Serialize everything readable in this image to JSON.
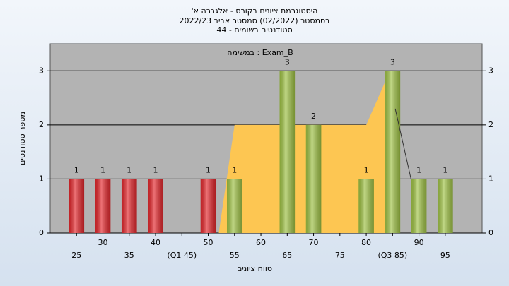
{
  "chart_data": {
    "type": "bar",
    "title": "'היסטוגרמת ציונים בקורס - אלגברה א",
    "subtitle": "בסמסטר  (02/2022)  סמסטר אביב 2022/23",
    "subtitle2": "סטודנטים רשומים - 44",
    "annotation": "במשימה : Exam_B",
    "x_label": "טווח ציונים",
    "y_label": "מספר סטודנטים",
    "x": [
      25,
      30,
      35,
      40,
      45,
      50,
      55,
      60,
      65,
      70,
      75,
      80,
      85,
      90,
      95
    ],
    "values": [
      1,
      1,
      1,
      1,
      0,
      1,
      1,
      0,
      3,
      2,
      0,
      1,
      3,
      1,
      1
    ],
    "colors": [
      "#e3262b",
      "#e3262b",
      "#e3262b",
      "#e3262b",
      "#e3262b",
      "#e3262b",
      "#9fc245",
      "#9fc245",
      "#9fc245",
      "#9fc245",
      "#9fc245",
      "#9fc245",
      "#9fc245",
      "#9fc245",
      "#9fc245"
    ],
    "xticks": [
      25,
      30,
      35,
      40,
      {
        "value": 45,
        "label": "(Q1 45)"
      },
      50,
      55,
      60,
      65,
      70,
      75,
      80,
      {
        "value": 85,
        "label": "(Q3 85)"
      },
      90,
      95
    ],
    "xlim": [
      20,
      102
    ],
    "ylim": [
      0,
      3.5
    ],
    "yticks": [
      0,
      1,
      2,
      3
    ],
    "grid": true,
    "area": {
      "color": "#fdc652",
      "x": [
        52,
        55,
        80,
        84.5,
        84.5
      ],
      "values": [
        0,
        2,
        2,
        3,
        0
      ]
    },
    "line": {
      "color": "#333333",
      "x": [
        85.5,
        88.5
      ],
      "values": [
        2.3,
        1
      ]
    }
  }
}
